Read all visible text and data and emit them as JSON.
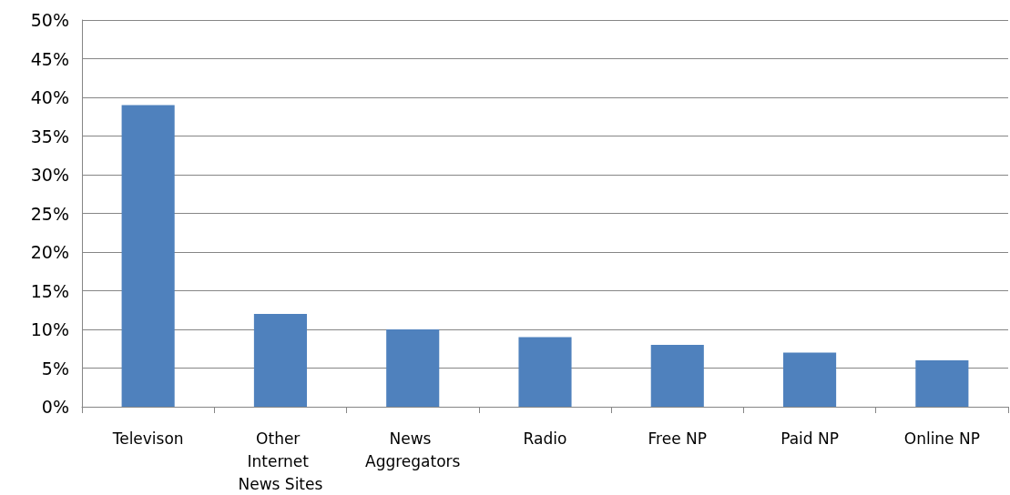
{
  "chart_data": {
    "type": "bar",
    "categories": [
      "Televison",
      "Other Internet News Sites",
      "News Aggregators",
      "Radio",
      "Free NP",
      "Paid NP",
      "Online NP"
    ],
    "values": [
      39,
      12,
      10,
      9,
      8,
      7,
      6
    ],
    "color": "#4f81bd",
    "ylim": [
      0,
      50
    ],
    "yticks": [
      {
        "value": 0,
        "label": "0%"
      },
      {
        "value": 5,
        "label": "5%"
      },
      {
        "value": 10,
        "label": "10%"
      },
      {
        "value": 15,
        "label": "15%"
      },
      {
        "value": 20,
        "label": "20%"
      },
      {
        "value": 25,
        "label": "25%"
      },
      {
        "value": 30,
        "label": "30%"
      },
      {
        "value": 35,
        "label": "35%"
      },
      {
        "value": 40,
        "label": "40%"
      },
      {
        "value": 45,
        "label": "45%"
      },
      {
        "value": 50,
        "label": "50%"
      }
    ],
    "grid": "y"
  }
}
